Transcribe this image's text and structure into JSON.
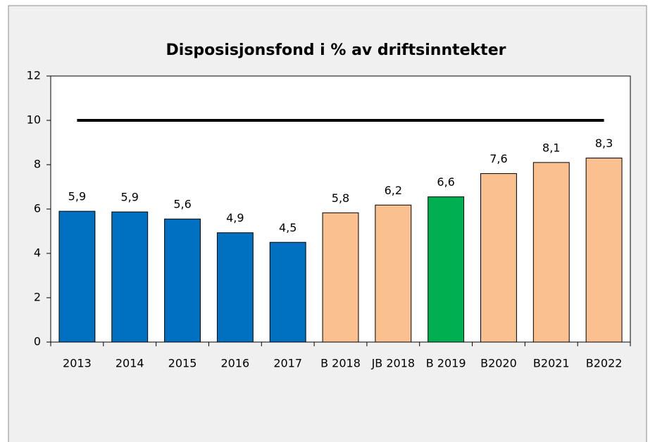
{
  "chart_data": {
    "type": "bar",
    "title": "Disposisjonsfond i % av driftsinntekter",
    "categories": [
      "2013",
      "2014",
      "2015",
      "2016",
      "2017",
      "B 2018",
      "JB 2018",
      "B 2019",
      "B2020",
      "B2021",
      "B2022"
    ],
    "series": [
      {
        "type": "bar",
        "values": [
          5.9,
          5.87,
          5.55,
          4.93,
          4.5,
          5.83,
          6.18,
          6.55,
          7.6,
          8.1,
          8.3
        ],
        "value_labels": [
          "5,9",
          "5,9",
          "5,6",
          "4,9",
          "4,5",
          "5,8",
          "6,2",
          "6,6",
          "7,6",
          "8,1",
          "8,3"
        ],
        "colors": [
          "#0070c0",
          "#0070c0",
          "#0070c0",
          "#0070c0",
          "#0070c0",
          "#fac090",
          "#fac090",
          "#00b050",
          "#fac090",
          "#fac090",
          "#fac090"
        ]
      },
      {
        "type": "line",
        "color": "#000000",
        "values": [
          10,
          10,
          10,
          10,
          10,
          10,
          10,
          10,
          10,
          10,
          10
        ]
      }
    ],
    "ylim": [
      0,
      12
    ],
    "yticks": [
      0,
      2,
      4,
      6,
      8,
      10,
      12
    ],
    "grid": false
  }
}
